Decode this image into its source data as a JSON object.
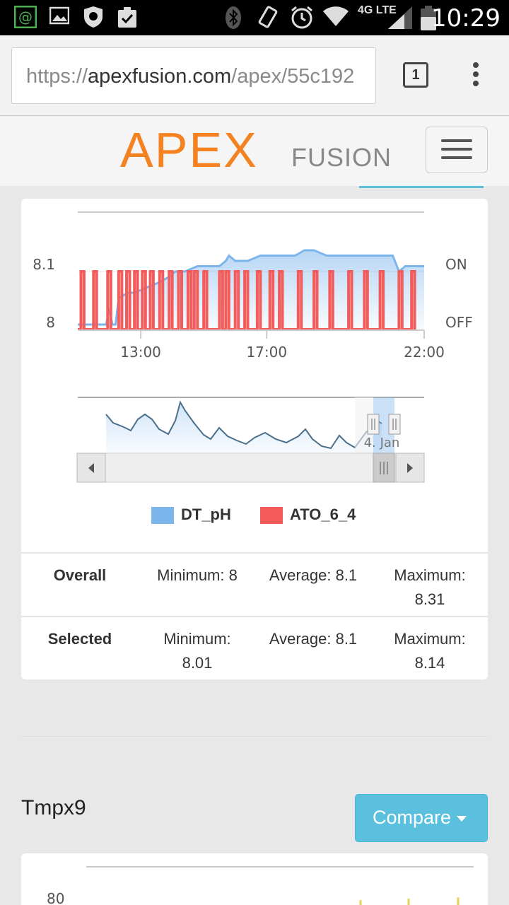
{
  "status_bar": {
    "time": "10:29",
    "network": "4G LTE",
    "icons": [
      "email-notify-icon",
      "image-icon",
      "shield-icon",
      "clipboard-check-icon",
      "bluetooth-icon",
      "vibrate-icon",
      "alarm-icon",
      "wifi-icon",
      "signal-icon",
      "battery-icon"
    ]
  },
  "browser": {
    "url_prefix": "https://",
    "url_domain": "apexfusion.com",
    "url_path": "/apex/55c192",
    "tab_count": "1"
  },
  "app": {
    "logo_main": "APEX",
    "logo_sub": "FUSION",
    "brand_color": "#f58220",
    "accent_color": "#5bc0de"
  },
  "chart_data": {
    "type": "line",
    "y_left_ticks": [
      "8.1",
      "8"
    ],
    "y_right_ticks": [
      "ON",
      "OFF"
    ],
    "x_ticks": [
      "13:00",
      "17:00",
      "22:00"
    ],
    "series": [
      {
        "name": "DT_pH",
        "color": "#7cb5ec",
        "x_hours": [
          11.0,
          11.5,
          11.9,
          12.0,
          12.1,
          12.2,
          12.3,
          12.6,
          12.8,
          13.2,
          13.6,
          13.9,
          14.1,
          14.4,
          14.8,
          15.1,
          15.5,
          15.7,
          15.8,
          16.0,
          16.2,
          16.4,
          16.8,
          17.0,
          17.5,
          17.9,
          18.2,
          18.5,
          18.9,
          19.5,
          20.3,
          21.0,
          21.2,
          21.4,
          21.6,
          22.0
        ],
        "y": [
          8.0,
          8.0,
          8.0,
          8.03,
          8.0,
          8.0,
          8.05,
          8.06,
          8.06,
          8.07,
          8.08,
          8.09,
          8.1,
          8.1,
          8.11,
          8.11,
          8.11,
          8.12,
          8.13,
          8.12,
          8.12,
          8.12,
          8.13,
          8.13,
          8.13,
          8.13,
          8.14,
          8.14,
          8.13,
          8.13,
          8.13,
          8.13,
          8.1,
          8.11,
          8.11,
          8.11
        ]
      },
      {
        "name": "ATO_6_4",
        "color": "#f45b5b",
        "on_times": [
          11.1,
          11.5,
          11.95,
          12.3,
          12.55,
          12.8,
          13.05,
          13.3,
          13.6,
          13.9,
          14.2,
          14.5,
          14.7,
          15.0,
          15.5,
          15.7,
          16.0,
          16.3,
          16.7,
          17.1,
          17.4,
          18.0,
          18.5,
          19.0,
          19.6,
          20.1,
          20.6,
          21.2,
          21.6
        ],
        "on_duration_h": 0.1
      }
    ],
    "ylim_left": [
      8.0,
      8.14
    ],
    "xlim_hours": [
      11.0,
      22.0
    ],
    "navigator": {
      "label": "4. Jan",
      "selected_range": "last portion"
    },
    "legend": {
      "placement": "bottom-center",
      "items": [
        {
          "label": "DT_pH",
          "color": "#7cb5ec"
        },
        {
          "label": "ATO_6_4",
          "color": "#f45b5b"
        }
      ]
    }
  },
  "stats": {
    "overall": {
      "label": "Overall",
      "min_label": "Minimum: 8",
      "avg_label": "Average: 8.1",
      "max_label_1": "Maximum:",
      "max_label_2": "8.31"
    },
    "selected": {
      "label": "Selected",
      "min_label_1": "Minimum:",
      "min_label_2": "8.01",
      "avg_label": "Average: 8.1",
      "max_label_1": "Maximum:",
      "max_label_2": "8.14"
    }
  },
  "next_section": {
    "title": "Tmpx9",
    "compare_label": "Compare",
    "first_tick": "80"
  }
}
